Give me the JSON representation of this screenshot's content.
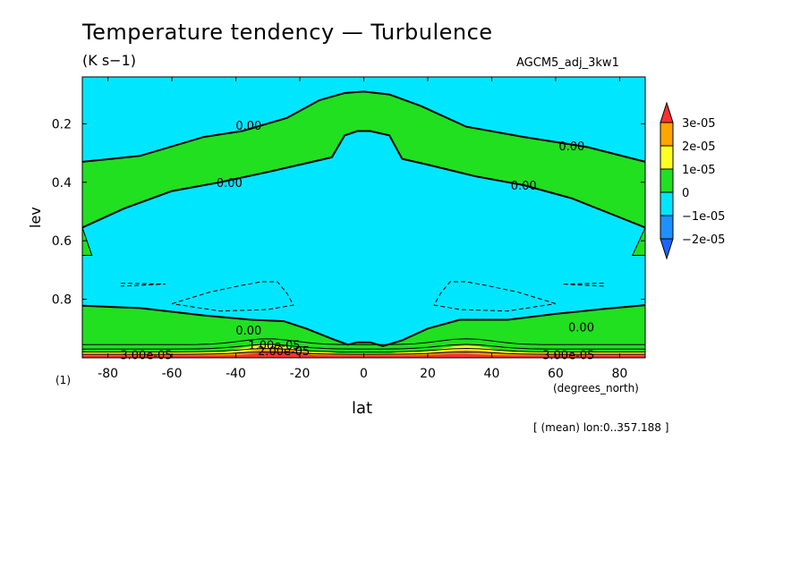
{
  "figure": {
    "title": "Temperature tendency — Turbulence",
    "units": "(K s−1)",
    "dataset": "AGCM5_adj_3kw1",
    "xunits": "(degrees_north)",
    "axis_one": "(1)",
    "region_note": "[ (mean) lon:0..357.188 ]"
  },
  "chart_data": {
    "type": "heatmap",
    "title": "Temperature tendency — Turbulence",
    "subtitle": "(K s−1)",
    "xlabel": "lat",
    "ylabel": "lev",
    "xlim": [
      -88,
      88
    ],
    "ylim": [
      1.0,
      0.04
    ],
    "y_reversed": true,
    "x_ticks": [
      -80,
      -60,
      -40,
      -20,
      0,
      20,
      40,
      60,
      80
    ],
    "y_ticks": [
      0.2,
      0.4,
      0.6,
      0.8
    ],
    "colorbar": {
      "levels": [
        "3e-05",
        "2e-05",
        "1e-05",
        "0",
        "−1e-05",
        "−2e-05"
      ],
      "colors": [
        "#ff3030",
        "#ffa500",
        "#ffff20",
        "#20e020",
        "#00e6ff",
        "#1e90ff",
        "#1e64ff"
      ]
    },
    "contour_labels": [
      {
        "text": "0.00",
        "lat": -36,
        "lev": 0.205
      },
      {
        "text": "0.00",
        "lat": 65,
        "lev": 0.275
      },
      {
        "text": "0.00",
        "lat": -42,
        "lev": 0.4
      },
      {
        "text": "0.00",
        "lat": 50,
        "lev": 0.41
      },
      {
        "text": "0.00",
        "lat": -36,
        "lev": 0.905
      },
      {
        "text": "0.00",
        "lat": 68,
        "lev": 0.895
      },
      {
        "text": "1.00e-05",
        "lat": -28,
        "lev": 0.955
      },
      {
        "text": "2.00e-05",
        "lat": -25,
        "lev": 0.975
      },
      {
        "text": "3.00e-05",
        "lat": -68,
        "lev": 0.99
      },
      {
        "text": "3.00e-05",
        "lat": 64,
        "lev": 0.99
      }
    ],
    "zero_contour_upper": [
      [
        -88,
        0.33
      ],
      [
        -70,
        0.31
      ],
      [
        -50,
        0.245
      ],
      [
        -38,
        0.225
      ],
      [
        -24,
        0.18
      ],
      [
        -14,
        0.12
      ],
      [
        -6,
        0.095
      ],
      [
        0,
        0.09
      ],
      [
        8,
        0.1
      ],
      [
        18,
        0.14
      ],
      [
        32,
        0.21
      ],
      [
        50,
        0.245
      ],
      [
        70,
        0.28
      ],
      [
        88,
        0.33
      ]
    ],
    "zero_contour_lower": [
      [
        -88,
        0.555
      ],
      [
        -75,
        0.49
      ],
      [
        -60,
        0.43
      ],
      [
        -45,
        0.4
      ],
      [
        -30,
        0.365
      ],
      [
        -18,
        0.335
      ],
      [
        -10,
        0.315
      ],
      [
        -6,
        0.24
      ],
      [
        -2,
        0.225
      ],
      [
        2,
        0.225
      ],
      [
        8,
        0.24
      ],
      [
        12,
        0.32
      ],
      [
        20,
        0.34
      ],
      [
        35,
        0.38
      ],
      [
        50,
        0.41
      ],
      [
        65,
        0.455
      ],
      [
        80,
        0.52
      ],
      [
        88,
        0.555
      ]
    ],
    "zero_contour_bottom": [
      [
        -88,
        0.822
      ],
      [
        -70,
        0.83
      ],
      [
        -50,
        0.855
      ],
      [
        -35,
        0.87
      ],
      [
        -25,
        0.875
      ],
      [
        -18,
        0.9
      ],
      [
        -10,
        0.935
      ],
      [
        -5,
        0.955
      ],
      [
        -2,
        0.947
      ],
      [
        2,
        0.947
      ],
      [
        6,
        0.96
      ],
      [
        12,
        0.94
      ],
      [
        20,
        0.9
      ],
      [
        30,
        0.87
      ],
      [
        45,
        0.87
      ],
      [
        60,
        0.85
      ],
      [
        75,
        0.833
      ],
      [
        88,
        0.82
      ]
    ],
    "polar_notches": [
      [
        [
          -88,
          0.555
        ],
        [
          -85,
          0.65
        ],
        [
          -88,
          0.65
        ]
      ],
      [
        [
          88,
          0.555
        ],
        [
          84,
          0.65
        ],
        [
          88,
          0.65
        ]
      ]
    ],
    "dashed_contours": [
      [
        [
          -76,
          0.745
        ],
        [
          -62,
          0.748
        ],
        [
          -76,
          0.755
        ]
      ],
      [
        [
          -60,
          0.815
        ],
        [
          -48,
          0.775
        ],
        [
          -38,
          0.752
        ],
        [
          -32,
          0.74
        ],
        [
          -27,
          0.74
        ],
        [
          -24,
          0.78
        ],
        [
          -22,
          0.82
        ],
        [
          -30,
          0.835
        ],
        [
          -45,
          0.84
        ],
        [
          -60,
          0.815
        ]
      ],
      [
        [
          75,
          0.745
        ],
        [
          62,
          0.748
        ],
        [
          75,
          0.755
        ]
      ],
      [
        [
          60,
          0.815
        ],
        [
          48,
          0.775
        ],
        [
          38,
          0.752
        ],
        [
          32,
          0.74
        ],
        [
          27,
          0.74
        ],
        [
          24,
          0.78
        ],
        [
          22,
          0.82
        ],
        [
          30,
          0.835
        ],
        [
          45,
          0.84
        ],
        [
          60,
          0.815
        ]
      ]
    ]
  }
}
